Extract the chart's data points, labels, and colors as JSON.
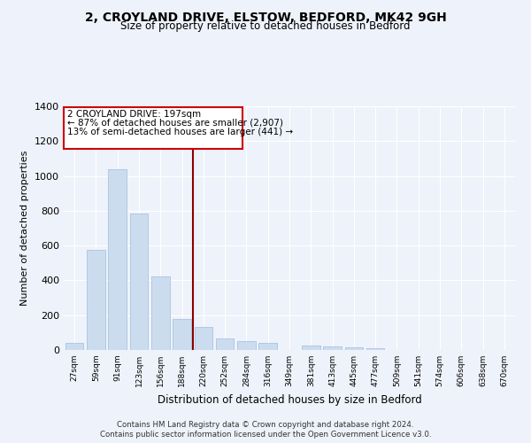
{
  "title_line1": "2, CROYLAND DRIVE, ELSTOW, BEDFORD, MK42 9GH",
  "title_line2": "Size of property relative to detached houses in Bedford",
  "xlabel": "Distribution of detached houses by size in Bedford",
  "ylabel": "Number of detached properties",
  "categories": [
    "27sqm",
    "59sqm",
    "91sqm",
    "123sqm",
    "156sqm",
    "188sqm",
    "220sqm",
    "252sqm",
    "284sqm",
    "316sqm",
    "349sqm",
    "381sqm",
    "413sqm",
    "445sqm",
    "477sqm",
    "509sqm",
    "541sqm",
    "574sqm",
    "606sqm",
    "638sqm",
    "670sqm"
  ],
  "values": [
    40,
    575,
    1040,
    785,
    425,
    180,
    130,
    65,
    50,
    40,
    0,
    27,
    20,
    15,
    10,
    0,
    0,
    0,
    0,
    0,
    0
  ],
  "bar_color": "#ccdcef",
  "bar_edgecolor": "#a8c4e0",
  "vline_x": 5.5,
  "vline_color": "#8b0000",
  "annotation_text_line1": "2 CROYLAND DRIVE: 197sqm",
  "annotation_text_line2": "← 87% of detached houses are smaller (2,907)",
  "annotation_text_line3": "13% of semi-detached houses are larger (441) →",
  "ylim": [
    0,
    1400
  ],
  "yticks": [
    0,
    200,
    400,
    600,
    800,
    1000,
    1200,
    1400
  ],
  "background_color": "#eef2fa",
  "plot_bg_color": "#eef2fa",
  "footer_line1": "Contains HM Land Registry data © Crown copyright and database right 2024.",
  "footer_line2": "Contains public sector information licensed under the Open Government Licence v3.0."
}
